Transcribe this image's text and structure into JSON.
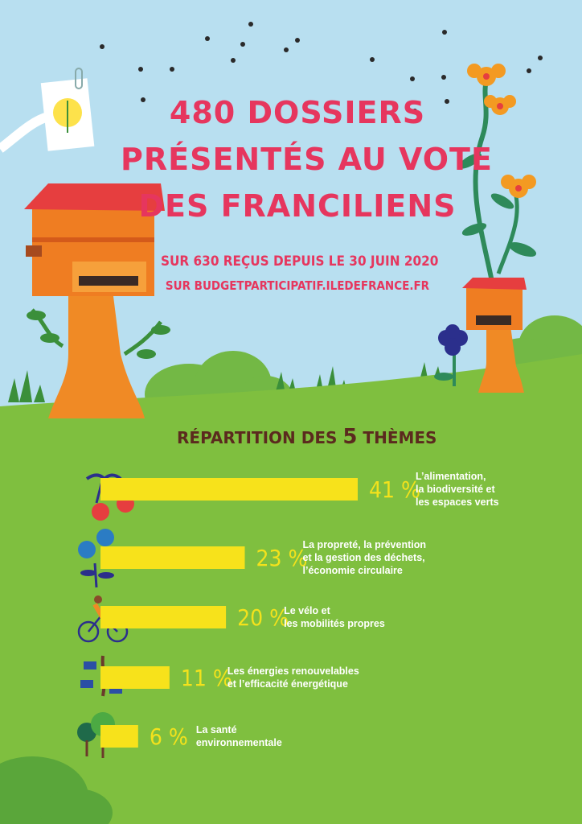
{
  "header": {
    "line1": "480 DOSSIERS",
    "line2": "PRÉSENTÉS AU VOTE",
    "line3": "DES FRANCILIENS",
    "subline1": "SUR 630 REÇUS DEPUIS LE 30 JUIN 2020",
    "subline2": "SUR BUDGETPARTICIPATIF.ILEDEFRANCE.FR"
  },
  "section": {
    "title_prefix": "RÉPARTITION DES ",
    "title_number": "5",
    "title_suffix": " THÈMES"
  },
  "colors": {
    "sky": "#b8dff0",
    "grass": "#7fbf3f",
    "accent_pink": "#e6365e",
    "bar_yellow": "#f7e21b",
    "title_brown": "#5b2a1e",
    "hive_orange": "#ef7d22",
    "hive_roof": "#e63e3f"
  },
  "chart_data": {
    "type": "bar",
    "orientation": "horizontal",
    "title": "RÉPARTITION DES 5 THÈMES",
    "unit": "%",
    "categories": [
      "L’alimentation,\nla biodiversité et\nles espaces verts",
      "La propreté, la prévention\net la gestion des déchets,\nl’économie circulaire",
      "Le vélo et\nles mobilités propres",
      "Les énergies renouvelables\net l’efficacité énergétique",
      "La santé\nenvironnementale"
    ],
    "values": [
      41,
      23,
      20,
      11,
      6
    ],
    "value_labels": [
      "41 %",
      "23 %",
      "20 %",
      "11 %",
      "6 %"
    ],
    "icons": [
      "cherries-icon",
      "recycling-flower-icon",
      "cyclist-icon",
      "solar-panel-plant-icon",
      "trees-icon"
    ]
  }
}
